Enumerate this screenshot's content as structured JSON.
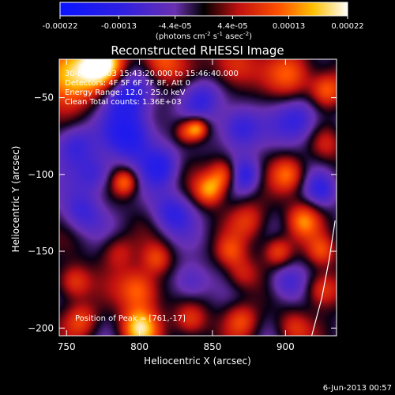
{
  "colorbar": {
    "tick_labels": [
      "-0.00022",
      "-0.00013",
      "-4.4e-05",
      "4.4e-05",
      "0.00013",
      "0.00022"
    ],
    "tick_values": [
      -0.00022,
      -0.00013,
      -4.4e-05,
      4.4e-05,
      0.00013,
      0.00022
    ],
    "range": [
      -0.00022,
      0.00022
    ],
    "unit_base": "(photons cm",
    "unit_exp1": "-2",
    "unit_mid1": " s",
    "unit_exp2": "-1",
    "unit_mid2": " asec",
    "unit_exp3": "-2",
    "unit_end": ")",
    "colormap": "rainbow-blue-to-white"
  },
  "chart_data": {
    "type": "heatmap",
    "title": "Reconstructed RHESSI Image",
    "xlabel": "Heliocentric X (arcsec)",
    "ylabel": "Heliocentric Y (arcsec)",
    "xlim": [
      745,
      935
    ],
    "ylim": [
      -205,
      -25
    ],
    "x_ticks": [
      750,
      800,
      850,
      900
    ],
    "y_ticks": [
      -50,
      -100,
      -150,
      -200
    ],
    "x_tick_labels": [
      "750",
      "800",
      "850",
      "900"
    ],
    "y_tick_labels": [
      "−50",
      "−100",
      "−150",
      "−200"
    ],
    "annotations": [
      "30-May-2003 15:43:20.000 to 15:46:40.000",
      "Detectors: 4F 5F 6F 7F 8F, Att 0",
      "Energy Range: 12.0 - 25.0 keV",
      "Clean    Total counts: 1.36E+03"
    ],
    "footnote": "Position of Peak = [761,-17]",
    "grid": false,
    "blobs": [
      {
        "x": 752,
        "y": -35,
        "v": 1.0,
        "s": 14
      },
      {
        "x": 775,
        "y": -28,
        "v": 1.0,
        "s": 10
      },
      {
        "x": 815,
        "y": -27,
        "v": 0.6,
        "s": 10
      },
      {
        "x": 865,
        "y": -30,
        "v": 0.55,
        "s": 11
      },
      {
        "x": 905,
        "y": -35,
        "v": 0.55,
        "s": 11
      },
      {
        "x": 928,
        "y": -45,
        "v": 0.6,
        "s": 8
      },
      {
        "x": 790,
        "y": -48,
        "v": -0.6,
        "s": 11
      },
      {
        "x": 795,
        "y": -75,
        "v": -0.7,
        "s": 12
      },
      {
        "x": 755,
        "y": -80,
        "v": -0.5,
        "s": 10
      },
      {
        "x": 840,
        "y": -70,
        "v": 0.7,
        "s": 5
      },
      {
        "x": 832,
        "y": -72,
        "v": 0.55,
        "s": 6
      },
      {
        "x": 842,
        "y": -50,
        "v": -0.5,
        "s": 10
      },
      {
        "x": 868,
        "y": -70,
        "v": -0.6,
        "s": 10
      },
      {
        "x": 910,
        "y": -65,
        "v": -0.55,
        "s": 11
      },
      {
        "x": 928,
        "y": -80,
        "v": 0.35,
        "s": 8
      },
      {
        "x": 770,
        "y": -100,
        "v": -0.45,
        "s": 9
      },
      {
        "x": 790,
        "y": -105,
        "v": 0.6,
        "s": 6
      },
      {
        "x": 815,
        "y": -95,
        "v": -0.5,
        "s": 9
      },
      {
        "x": 848,
        "y": -110,
        "v": 0.7,
        "s": 7
      },
      {
        "x": 858,
        "y": -100,
        "v": 0.65,
        "s": 7
      },
      {
        "x": 872,
        "y": -100,
        "v": -0.5,
        "s": 8
      },
      {
        "x": 902,
        "y": -100,
        "v": 0.55,
        "s": 8
      },
      {
        "x": 925,
        "y": -110,
        "v": -0.4,
        "s": 8
      },
      {
        "x": 760,
        "y": -125,
        "v": -0.45,
        "s": 10
      },
      {
        "x": 822,
        "y": -125,
        "v": -0.5,
        "s": 10
      },
      {
        "x": 875,
        "y": -130,
        "v": 0.4,
        "s": 9
      },
      {
        "x": 912,
        "y": -130,
        "v": 0.6,
        "s": 8
      },
      {
        "x": 785,
        "y": -150,
        "v": 0.35,
        "s": 8
      },
      {
        "x": 812,
        "y": -155,
        "v": 0.45,
        "s": 7
      },
      {
        "x": 862,
        "y": -150,
        "v": 0.4,
        "s": 7
      },
      {
        "x": 895,
        "y": -150,
        "v": 0.55,
        "s": 7
      },
      {
        "x": 925,
        "y": -150,
        "v": 0.45,
        "s": 7
      },
      {
        "x": 755,
        "y": -170,
        "v": 0.55,
        "s": 8
      },
      {
        "x": 800,
        "y": -175,
        "v": 0.7,
        "s": 10
      },
      {
        "x": 835,
        "y": -170,
        "v": -0.45,
        "s": 9
      },
      {
        "x": 870,
        "y": -165,
        "v": 0.4,
        "s": 8
      },
      {
        "x": 900,
        "y": -170,
        "v": -0.45,
        "s": 9
      },
      {
        "x": 925,
        "y": -175,
        "v": 0.55,
        "s": 8
      },
      {
        "x": 760,
        "y": -195,
        "v": 0.45,
        "s": 8
      },
      {
        "x": 800,
        "y": -200,
        "v": 0.85,
        "s": 9
      },
      {
        "x": 835,
        "y": -195,
        "v": 0.5,
        "s": 8
      },
      {
        "x": 870,
        "y": -195,
        "v": 0.45,
        "s": 8
      },
      {
        "x": 905,
        "y": -200,
        "v": 0.4,
        "s": 8
      }
    ],
    "limb_curve": {
      "x": [
        918,
        925,
        930,
        934
      ],
      "y": [
        -205,
        -180,
        -155,
        -130
      ]
    }
  },
  "timestamp": "6-Jun-2013 00:57"
}
